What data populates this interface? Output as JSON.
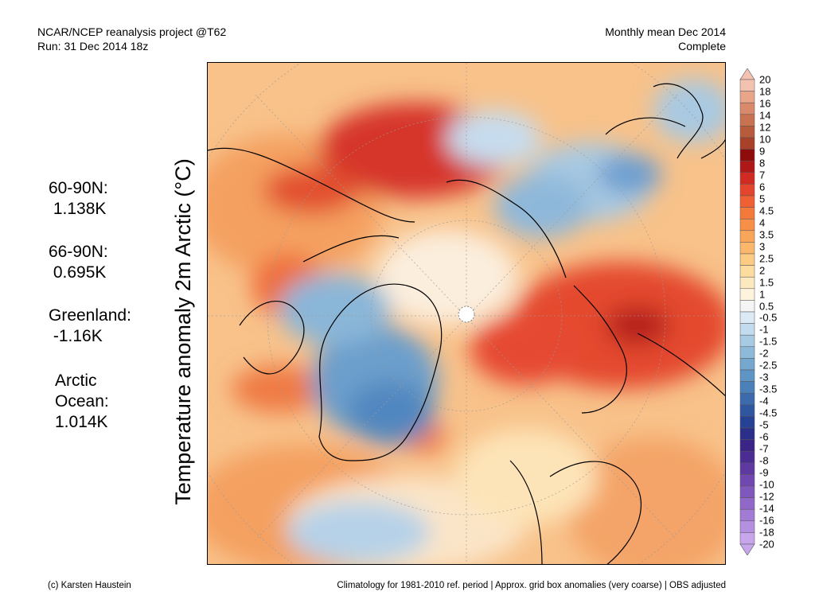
{
  "header": {
    "left_line1": "NCAR/NCEP reanalysis project @T62",
    "left_line2": "Run: 31 Dec 2014 18z",
    "right_line1": "Monthly mean Dec 2014",
    "right_line2": "Complete"
  },
  "y_label": "Temperature anomaly 2m Arctic (°C)",
  "stats": [
    {
      "label": "60-90N:",
      "value": "1.138K"
    },
    {
      "label": "66-90N:",
      "value": "0.695K"
    },
    {
      "label": "Greenland:",
      "value": "-1.16K"
    },
    {
      "label": "Arctic\nOcean:",
      "value": "1.014K"
    }
  ],
  "colorbar": {
    "labels": [
      "20",
      "18",
      "16",
      "14",
      "12",
      "10",
      "9",
      "8",
      "7",
      "6",
      "5",
      "4.5",
      "4",
      "3.5",
      "3",
      "2.5",
      "2",
      "1.5",
      "1",
      "0.5",
      "-0.5",
      "-1",
      "-1.5",
      "-2",
      "-2.5",
      "-3",
      "-3.5",
      "-4",
      "-4.5",
      "-5",
      "-6",
      "-7",
      "-8",
      "-9",
      "-10",
      "-12",
      "-14",
      "-16",
      "-18",
      "-20"
    ],
    "colors": [
      "#f4c2b0",
      "#e8a58a",
      "#d88a6a",
      "#c87252",
      "#b85a3c",
      "#a8402a",
      "#8e0c0c",
      "#b01818",
      "#d02a22",
      "#e4452e",
      "#ef6035",
      "#f47a3c",
      "#f78f48",
      "#f9a55a",
      "#fbb86c",
      "#fccb84",
      "#fddca0",
      "#fde9bf",
      "#fef4de",
      "#f5f5f5",
      "#dbeaf4",
      "#c2dbee",
      "#a8cbe4",
      "#8ebad9",
      "#76a8cf",
      "#5f95c4",
      "#4c80b8",
      "#3d6aac",
      "#3056a0",
      "#264294",
      "#2c2f8a",
      "#3a2486",
      "#4a2c92",
      "#5e3aa0",
      "#7048b0",
      "#8058bd",
      "#9168c8",
      "#a27bd4",
      "#b58fe0",
      "#c7a6ec"
    ]
  },
  "footer": {
    "left": "(c) Karsten Haustein",
    "right": "Climatology for 1981-2010 ref. period | Approx. grid box anomalies (very coarse) | OBS adjusted"
  }
}
